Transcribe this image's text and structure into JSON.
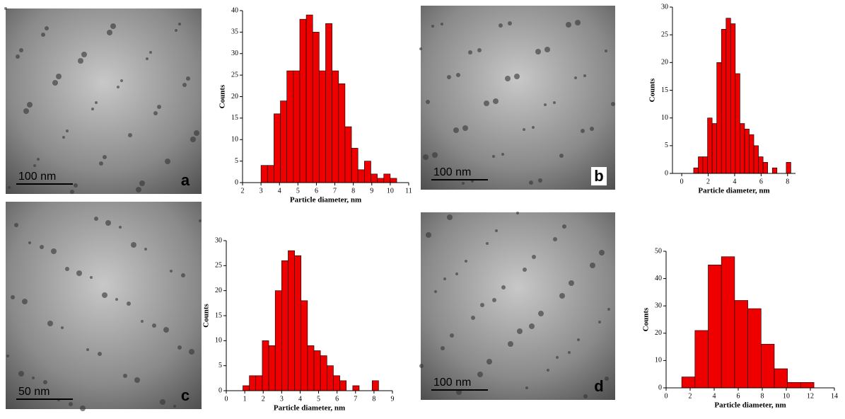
{
  "panels": [
    {
      "scale_bar": "100 nm",
      "label": "a"
    },
    {
      "scale_bar": "100 nm",
      "label": "b"
    },
    {
      "scale_bar": "50 nm",
      "label": "c"
    },
    {
      "scale_bar": "100 nm",
      "label": "d"
    }
  ],
  "chart_data": [
    {
      "type": "histogram",
      "x_label": "Particle diameter, nm",
      "y_label": "Counts",
      "color": "#ee0000",
      "bins": [
        3,
        3.35,
        3.7,
        4.05,
        4.4,
        4.75,
        5.1,
        5.45,
        5.8,
        6.15,
        6.5,
        6.85,
        7.2,
        7.55,
        7.9,
        8.25,
        8.6,
        8.95,
        9.3,
        9.65,
        10,
        10.35
      ],
      "values": [
        4,
        4,
        16,
        19,
        26,
        26,
        38,
        39,
        35,
        26,
        37,
        26,
        23,
        13,
        8,
        3,
        5,
        2,
        1,
        2,
        1
      ],
      "xlim": [
        2,
        11
      ],
      "xticks": [
        2,
        3,
        4,
        5,
        6,
        7,
        8,
        9,
        10,
        11
      ],
      "ylim": [
        0,
        40
      ],
      "yticks": [
        0,
        5,
        10,
        15,
        20,
        25,
        30,
        35,
        40
      ]
    },
    {
      "type": "histogram",
      "x_label": "Particle diameter, nm",
      "y_label": "Counts",
      "color": "#ee0000",
      "bins": [
        0.9,
        1.25,
        1.6,
        1.95,
        2.3,
        2.65,
        3,
        3.35,
        3.7,
        4.05,
        4.4,
        4.75,
        5.1,
        5.45,
        5.8,
        6.15,
        6.5,
        6.85,
        7.2,
        7.55,
        7.9,
        8.25
      ],
      "values": [
        1,
        3,
        3,
        10,
        9,
        20,
        26,
        28,
        27,
        18,
        9,
        8,
        7,
        5,
        3,
        2,
        0,
        1,
        0,
        0,
        2
      ],
      "xlim": [
        -0.7,
        8.6
      ],
      "xticks": [
        0,
        2,
        4,
        6,
        8
      ],
      "ylim": [
        0,
        30
      ],
      "yticks": [
        0,
        5,
        10,
        15,
        20,
        25,
        30
      ]
    },
    {
      "type": "histogram",
      "x_label": "Particle diameter, nm",
      "y_label": "Counts",
      "color": "#ee0000",
      "bins": [
        0.9,
        1.25,
        1.6,
        1.95,
        2.3,
        2.65,
        3,
        3.35,
        3.7,
        4.05,
        4.4,
        4.75,
        5.1,
        5.45,
        5.8,
        6.15,
        6.5,
        6.85,
        7.2,
        7.55,
        7.9,
        8.25
      ],
      "values": [
        1,
        3,
        3,
        10,
        9,
        20,
        26,
        28,
        27,
        18,
        9,
        8,
        7,
        5,
        3,
        2,
        0,
        1,
        0,
        0,
        2
      ],
      "xlim": [
        0,
        9
      ],
      "xticks": [
        0,
        1,
        2,
        3,
        4,
        5,
        6,
        7,
        8,
        9
      ],
      "ylim": [
        0,
        30
      ],
      "yticks": [
        0,
        5,
        10,
        15,
        20,
        25,
        30
      ]
    },
    {
      "type": "histogram",
      "x_label": "Particle diameter, nm",
      "y_label": "Counts",
      "color": "#ee0000",
      "bins": [
        1.3,
        2.4,
        3.5,
        4.6,
        5.7,
        6.8,
        7.9,
        9,
        10.1,
        11.2,
        12.3
      ],
      "values": [
        4,
        21,
        45,
        48,
        32,
        29,
        16,
        7,
        2,
        2
      ],
      "xlim": [
        0,
        14
      ],
      "xticks": [
        0,
        2,
        4,
        6,
        8,
        10,
        12,
        14
      ],
      "ylim": [
        0,
        50
      ],
      "yticks": [
        0,
        10,
        20,
        30,
        40,
        50
      ]
    }
  ]
}
